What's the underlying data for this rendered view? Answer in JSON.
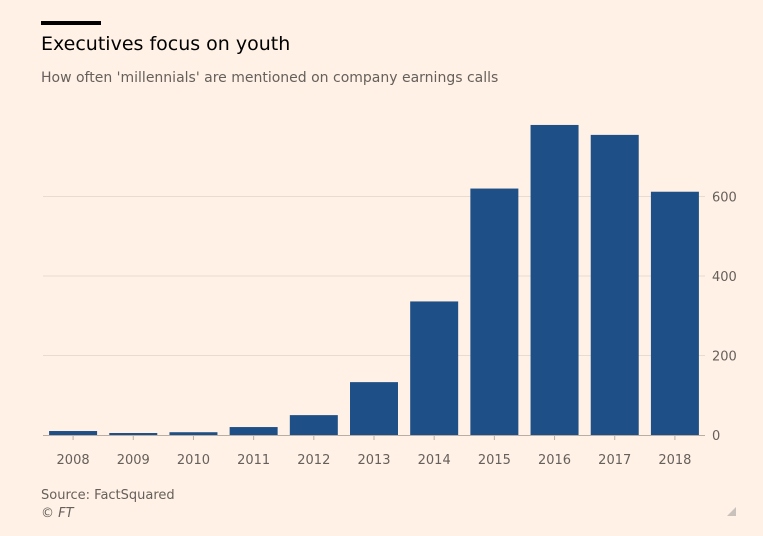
{
  "title": "Executives focus on youth",
  "subtitle": "How often 'millennials' are mentioned on company earnings calls",
  "source": "Source: FactSquared",
  "copyright": "© FT",
  "colors": {
    "bar": "#1f4f87",
    "grid": "#e8dcd0",
    "axis": "#b8aea4",
    "tick_text": "#66605c"
  },
  "chart_data": {
    "type": "bar",
    "title": "Executives focus on youth",
    "subtitle": "How often 'millennials' are mentioned on company earnings calls",
    "categories": [
      "2008",
      "2009",
      "2010",
      "2011",
      "2012",
      "2013",
      "2014",
      "2015",
      "2016",
      "2017",
      "2018"
    ],
    "values": [
      10,
      5,
      7,
      20,
      50,
      133,
      336,
      620,
      780,
      755,
      612
    ],
    "xlabel": "",
    "ylabel": "",
    "ylim": [
      0,
      800
    ],
    "yticks": [
      0,
      200,
      400,
      600
    ],
    "y_axis_side": "right",
    "grid": true,
    "legend": "none"
  }
}
